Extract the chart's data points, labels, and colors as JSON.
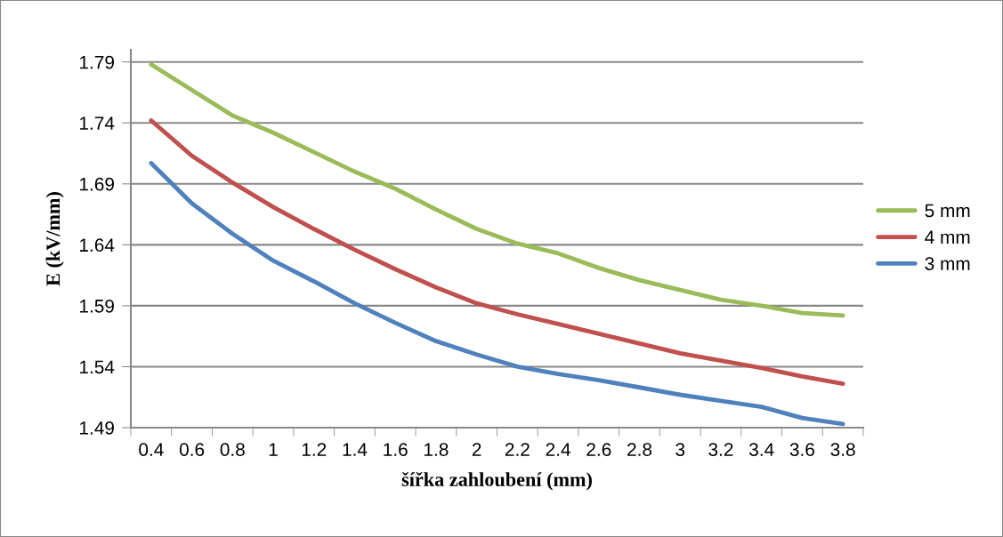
{
  "chart_data": {
    "type": "line",
    "xlabel": "šířka zahloubení (mm)",
    "ylabel": "E (kV/mm)",
    "categories": [
      "0.4",
      "0.6",
      "0.8",
      "1",
      "1.2",
      "1.4",
      "1.6",
      "1.8",
      "2",
      "2.2",
      "2.4",
      "2.6",
      "2.8",
      "3",
      "3.2",
      "3.4",
      "3.6",
      "3.8"
    ],
    "series": [
      {
        "name": "5 mm",
        "color": "#9bbb59",
        "values": [
          1.788,
          1.767,
          1.746,
          1.732,
          1.716,
          1.7,
          1.686,
          1.669,
          1.653,
          1.641,
          1.633,
          1.621,
          1.611,
          1.603,
          1.595,
          1.59,
          1.584,
          1.582
        ]
      },
      {
        "name": "4 mm",
        "color": "#c0504d",
        "values": [
          1.742,
          1.713,
          1.691,
          1.671,
          1.653,
          1.636,
          1.62,
          1.605,
          1.592,
          1.583,
          1.575,
          1.567,
          1.559,
          1.551,
          1.545,
          1.539,
          1.532,
          1.526
        ]
      },
      {
        "name": "3 mm",
        "color": "#4f81bd",
        "values": [
          1.707,
          1.674,
          1.649,
          1.627,
          1.61,
          1.592,
          1.576,
          1.561,
          1.55,
          1.54,
          1.534,
          1.529,
          1.523,
          1.517,
          1.512,
          1.507,
          1.498,
          1.493
        ]
      }
    ],
    "ylim": [
      1.49,
      1.8
    ],
    "yticks": [
      1.49,
      1.54,
      1.59,
      1.64,
      1.69,
      1.74,
      1.79
    ],
    "grid": "y",
    "legend": "right",
    "marker": "none",
    "line_style": "solid"
  }
}
